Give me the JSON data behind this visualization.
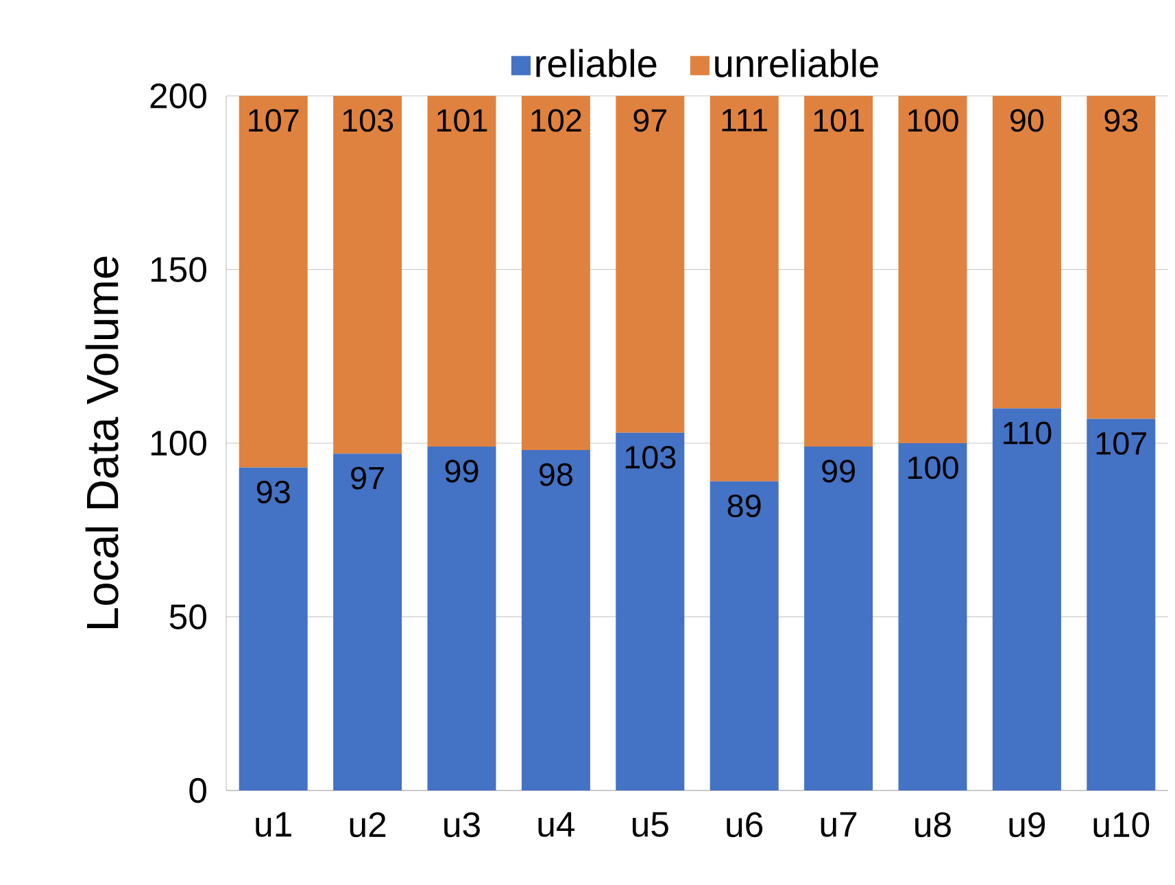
{
  "chart_data": {
    "type": "bar",
    "stacked": true,
    "ylabel": "Local Data Volume",
    "categories": [
      "u1",
      "u2",
      "u3",
      "u4",
      "u5",
      "u6",
      "u7",
      "u8",
      "u9",
      "u10"
    ],
    "series": [
      {
        "name": "reliable",
        "color": "#4472c4",
        "values": [
          93,
          97,
          99,
          98,
          103,
          89,
          99,
          100,
          110,
          107
        ]
      },
      {
        "name": "unreliable",
        "color": "#e0823f",
        "values": [
          107,
          103,
          101,
          102,
          97,
          111,
          101,
          100,
          90,
          93
        ]
      }
    ],
    "ylim": [
      0,
      200
    ],
    "yticks": [
      0,
      50,
      100,
      150,
      200
    ],
    "grid": "y",
    "legend": "top",
    "data_labels": true
  }
}
